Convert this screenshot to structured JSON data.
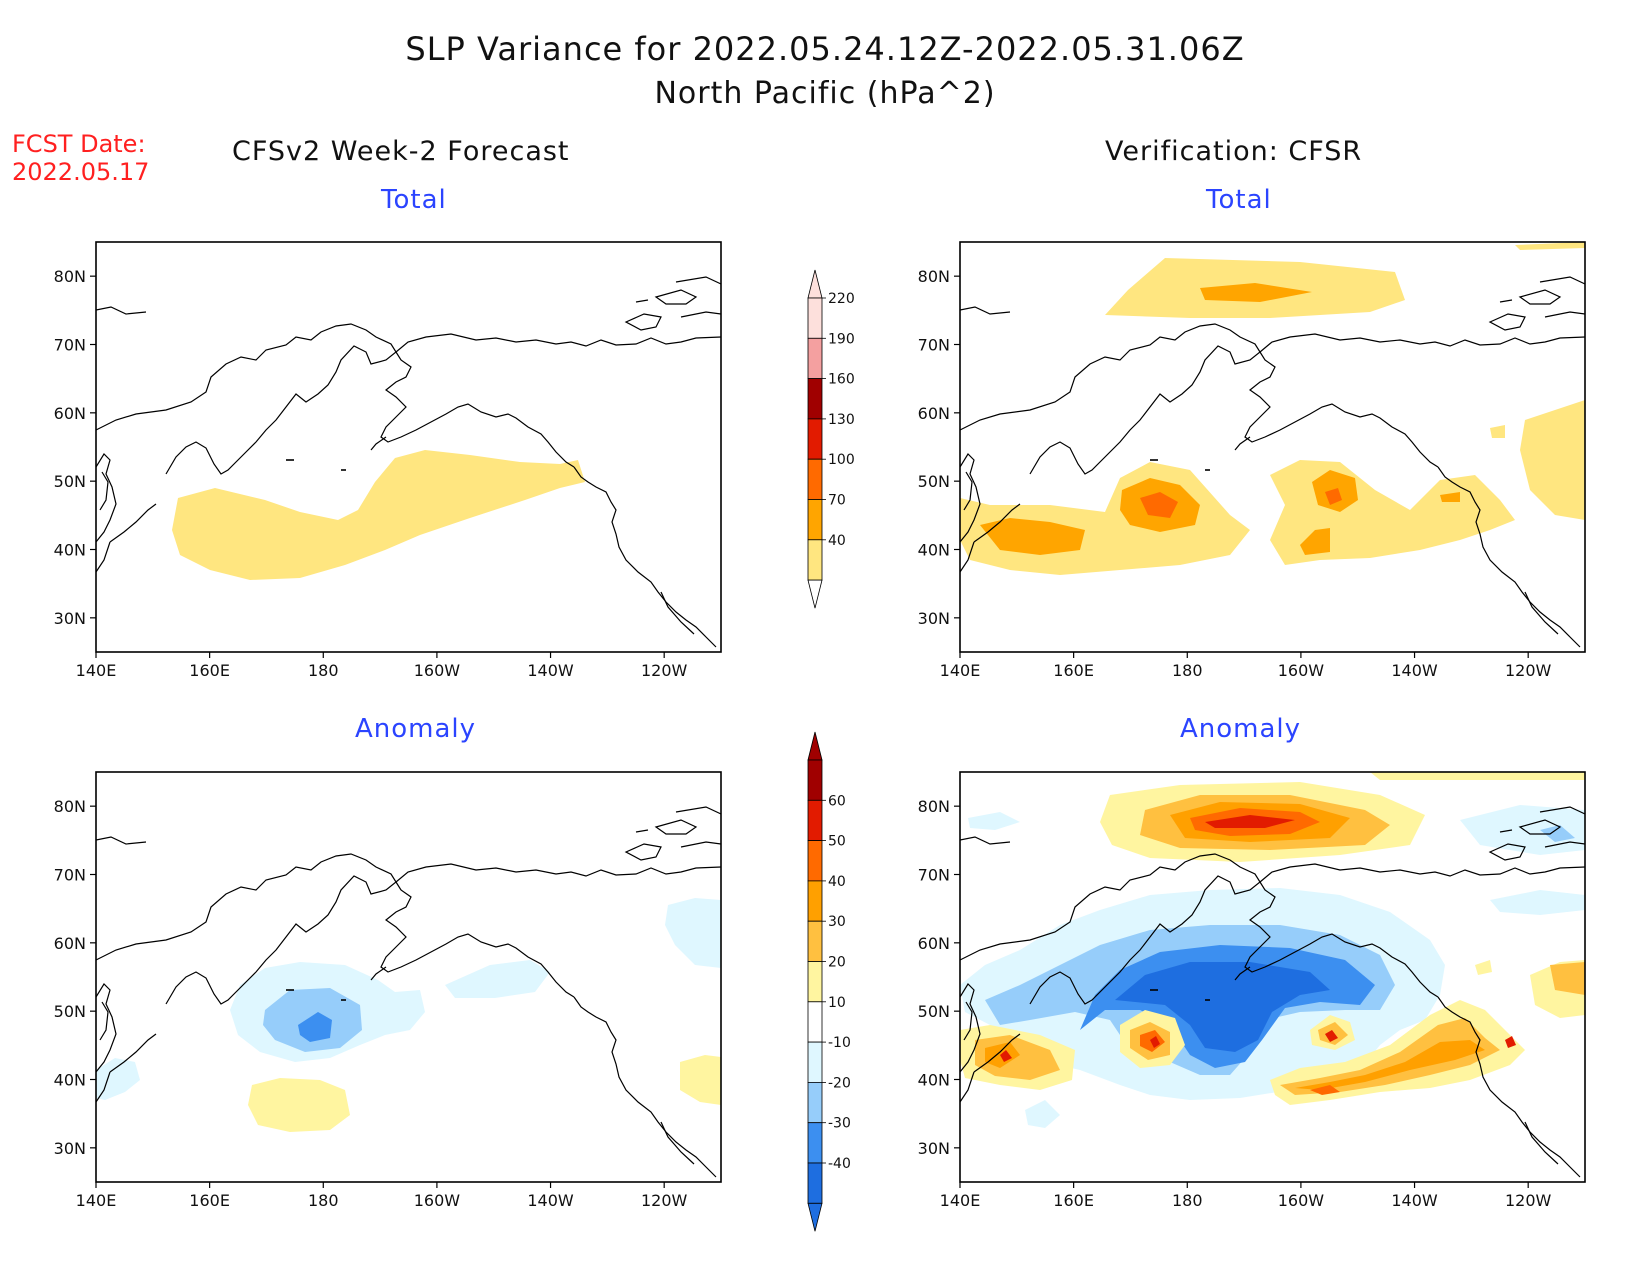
{
  "title_line1": "SLP Variance for 2022.05.24.12Z-2022.05.31.06Z",
  "title_line2": "North Pacific (hPa^2)",
  "fcst_date_label": "FCST Date:",
  "fcst_date_value": "2022.05.17",
  "columns": {
    "left": "CFSv2 Week-2 Forecast",
    "right": "Verification: CFSR"
  },
  "panel_titles": {
    "total": "Total",
    "anomaly": "Anomaly"
  },
  "x_ticks": [
    "140E",
    "160E",
    "180",
    "160W",
    "140W",
    "120W"
  ],
  "y_ticks": [
    "30N",
    "40N",
    "50N",
    "60N",
    "70N",
    "80N"
  ],
  "colorbar_total": {
    "levels": [
      "40",
      "70",
      "100",
      "130",
      "160",
      "190",
      "220"
    ],
    "colors": [
      "#ffe680",
      "#ffa500",
      "#ff6a00",
      "#e21b00",
      "#a00000",
      "#f4a0a0",
      "#fde0dc"
    ]
  },
  "colorbar_anomaly": {
    "levels": [
      "-40",
      "-30",
      "-20",
      "-10",
      "10",
      "20",
      "30",
      "40",
      "50",
      "60"
    ],
    "colors": [
      "#1e6ee0",
      "#3c8ff0",
      "#96cdfa",
      "#dff7ff",
      "#ffffff",
      "#fff5a0",
      "#ffc040",
      "#ffa000",
      "#ff6a00",
      "#e21b00",
      "#a00000"
    ]
  }
}
